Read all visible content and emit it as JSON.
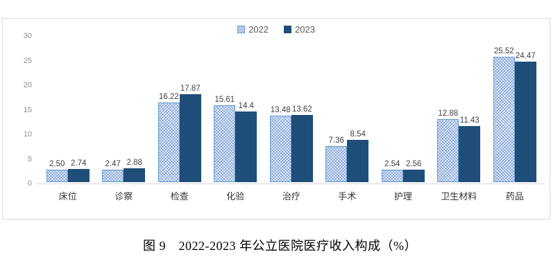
{
  "caption": "图 9　2022-2023 年公立医院医疗收入构成（%）",
  "colors": {
    "series_2022_fill": "#eaf1fa",
    "series_2022_hatch": "#4472c4",
    "series_2022_border": "#5b9bd5",
    "series_2023_fill": "#1f4e79",
    "axis_text": "#8c8c8c",
    "value_label_text": "#3f3f3f",
    "chart_border": "#d9d9d9"
  },
  "chart_data": {
    "type": "bar",
    "title": "图 9　2022-2023 年公立医院医疗收入构成（%）",
    "categories": [
      "床位",
      "诊察",
      "检查",
      "化验",
      "治疗",
      "手术",
      "护理",
      "卫生材料",
      "药品"
    ],
    "series": [
      {
        "name": "2022",
        "style": "hatched-light-blue",
        "values": [
          2.5,
          2.47,
          16.22,
          15.61,
          13.48,
          7.36,
          2.54,
          12.88,
          25.52
        ],
        "labels": [
          "2.50",
          "2.47",
          "16.22",
          "15.61",
          "13.48",
          "7.36",
          "2.54",
          "12.88",
          "25.52"
        ]
      },
      {
        "name": "2023",
        "style": "solid-dark-blue",
        "values": [
          2.74,
          2.88,
          17.87,
          14.4,
          13.62,
          8.54,
          2.56,
          11.43,
          24.47
        ],
        "labels": [
          "2.74",
          "2.88",
          "17.87",
          "14.4",
          "13.62",
          "8.54",
          "2.56",
          "11.43",
          "24.47"
        ]
      }
    ],
    "xlabel": "",
    "ylabel": "",
    "yticks": [
      0,
      5,
      10,
      15,
      20,
      25,
      30
    ],
    "ylim": [
      0,
      30
    ],
    "grid": false,
    "legend_position": "top-center",
    "data_labels": true
  }
}
